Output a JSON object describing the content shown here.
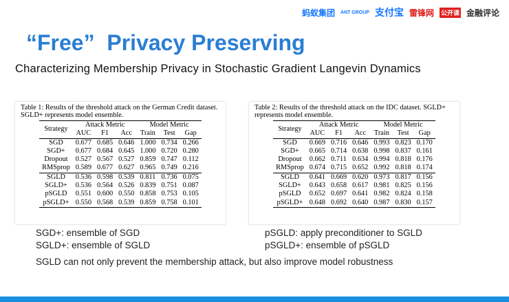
{
  "header": {
    "logos": [
      "蚂蚁集团",
      "ANT GROUP",
      "支付宝",
      "雷锋网",
      "公开课",
      "金融评论"
    ]
  },
  "title": "“Free”  Privacy Preserving",
  "subtitle": "Characterizing Membership Privacy in Stochastic Gradient Langevin Dynamics",
  "tables": [
    {
      "caption": "Table 1: Results of the threshold attack on the German Credit dataset. SGLD+ represents model ensemble.",
      "group_header": [
        "Strategy",
        "Attack Metric",
        "Model Metric"
      ],
      "columns": [
        "AUC",
        "F1",
        "Acc",
        "Train",
        "Test",
        "Gap"
      ],
      "rows": [
        [
          "SGD",
          "0.677",
          "0.685",
          "0.646",
          "1.000",
          "0.734",
          "0.266"
        ],
        [
          "SGD+",
          "0.677",
          "0.684",
          "0.645",
          "1.000",
          "0.720",
          "0.280"
        ],
        [
          "Dropout",
          "0.527",
          "0.567",
          "0.527",
          "0.859",
          "0.747",
          "0.112"
        ],
        [
          "RMSprop",
          "0.589",
          "0.677",
          "0.627",
          "0.965",
          "0.749",
          "0.216"
        ],
        [
          "SGLD",
          "0.536",
          "0.598",
          "0.539",
          "0.811",
          "0.736",
          "0.075"
        ],
        [
          "SGLD+",
          "0.536",
          "0.564",
          "0.526",
          "0.839",
          "0.751",
          "0.087"
        ],
        [
          "pSGLD",
          "0.551",
          "0.600",
          "0.550",
          "0.858",
          "0.753",
          "0.105"
        ],
        [
          "pSGLD+",
          "0.550",
          "0.568",
          "0.539",
          "0.859",
          "0.758",
          "0.101"
        ]
      ]
    },
    {
      "caption": "Table 2: Results of the threshold attack on the IDC dataset. SGLD+ represents model ensemble.",
      "group_header": [
        "Strategy",
        "Attack Metric",
        "Model Metric"
      ],
      "columns": [
        "AUC",
        "F1",
        "Acc",
        "Train",
        "Test",
        "Gap"
      ],
      "rows": [
        [
          "SGD",
          "0.669",
          "0.716",
          "0.646",
          "0.993",
          "0.823",
          "0.170"
        ],
        [
          "SGD+",
          "0.665",
          "0.714",
          "0.638",
          "0.998",
          "0.837",
          "0.161"
        ],
        [
          "Dropout",
          "0.662",
          "0.711",
          "0.634",
          "0.994",
          "0.818",
          "0.176"
        ],
        [
          "RMSprop",
          "0.674",
          "0.715",
          "0.652",
          "0.992",
          "0.818",
          "0.174"
        ],
        [
          "SGLD",
          "0.641",
          "0.669",
          "0.620",
          "0.973",
          "0.817",
          "0.156"
        ],
        [
          "SGLD+",
          "0.643",
          "0.658",
          "0.617",
          "0.981",
          "0.825",
          "0.156"
        ],
        [
          "pSGLD",
          "0.652",
          "0.697",
          "0.641",
          "0.982",
          "0.824",
          "0.158"
        ],
        [
          "pSGLD+",
          "0.648",
          "0.692",
          "0.640",
          "0.987",
          "0.830",
          "0.157"
        ]
      ]
    }
  ],
  "notes": [
    [
      "SGD+: ensemble of SGD",
      "SGLD+: ensemble of SGLD"
    ],
    [
      "pSGLD: apply preconditioner to SGLD",
      "pSGLD+: ensemble of pSGLD"
    ]
  ],
  "conclusion": "SGLD can not only prevent the membership attack, but also improve model robustness"
}
